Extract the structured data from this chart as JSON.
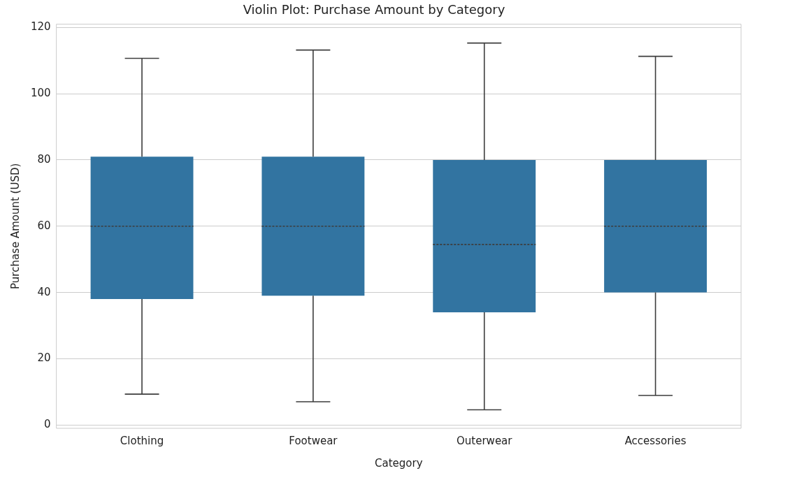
{
  "chart_data": {
    "type": "box",
    "title": "Violin Plot: Purchase Amount by Category",
    "xlabel": "Category",
    "ylabel": "Purchase Amount (USD)",
    "categories": [
      "Clothing",
      "Footwear",
      "Outerwear",
      "Accessories"
    ],
    "color": "#3274a1",
    "boxes": [
      {
        "low": 9.3,
        "q1": 38,
        "median": 60,
        "q3": 81,
        "high": 110.7
      },
      {
        "low": 7,
        "q1": 39,
        "median": 60,
        "q3": 81,
        "high": 113.2
      },
      {
        "low": 4.6,
        "q1": 34,
        "median": 54.5,
        "q3": 80,
        "high": 115.3
      },
      {
        "low": 8.9,
        "q1": 40,
        "median": 60,
        "q3": 80,
        "high": 111.3
      }
    ],
    "ylim": [
      -1,
      121
    ],
    "yticks": [
      0,
      20,
      40,
      60,
      80,
      100,
      120
    ],
    "grid": "y",
    "legend": false
  }
}
